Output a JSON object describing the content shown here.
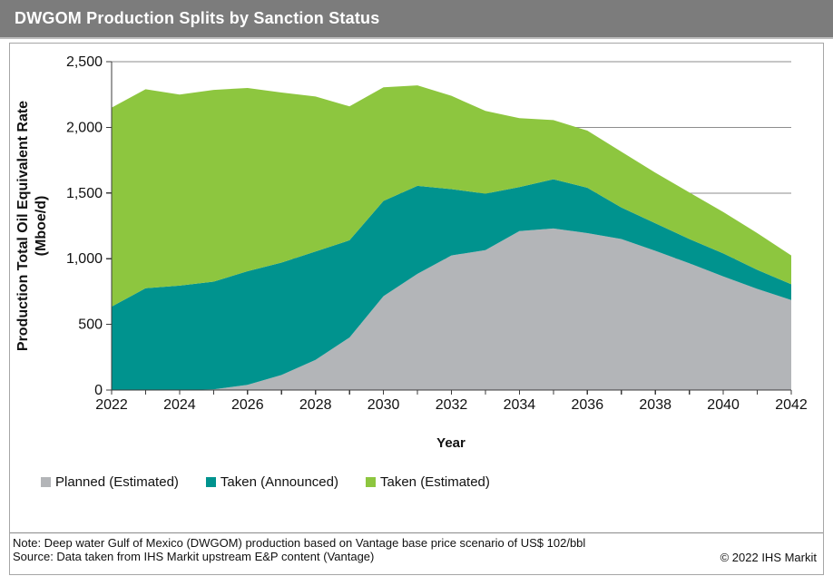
{
  "title_bar": {
    "title": "DWGOM Production Splits by Sanction Status"
  },
  "chart_data": {
    "type": "area",
    "stacked": true,
    "title": "DWGOM Production Splits by Sanction Status",
    "xlabel": "Year",
    "ylabel": "Production Total Oil Equivalent Rate (Mboe/d)",
    "ylabel_line1": "Production  Total Oil Equivalent Rate",
    "ylabel_line2": "(Mboe/d)",
    "ylim": [
      0,
      2500
    ],
    "ytick_step": 500,
    "xtick_label_step": 2,
    "grid": "horizontal",
    "legend_position": "bottom-left",
    "x": [
      2022,
      2023,
      2024,
      2025,
      2026,
      2027,
      2028,
      2029,
      2030,
      2031,
      2032,
      2033,
      2034,
      2035,
      2036,
      2037,
      2038,
      2039,
      2040,
      2041,
      2042
    ],
    "series": [
      {
        "name": "Planned (Estimated)",
        "color": "#b3b5b8",
        "values": [
          0,
          0,
          0,
          5,
          40,
          115,
          230,
          400,
          715,
          885,
          1025,
          1065,
          1210,
          1230,
          1195,
          1150,
          1060,
          965,
          865,
          770,
          685
        ]
      },
      {
        "name": "Taken (Announced)",
        "color": "#00938e",
        "values": [
          635,
          775,
          795,
          820,
          865,
          855,
          825,
          740,
          725,
          670,
          505,
          430,
          335,
          375,
          345,
          240,
          210,
          185,
          175,
          145,
          120
        ]
      },
      {
        "name": "Taken (Estimated)",
        "color": "#8dc63f",
        "values": [
          1515,
          1515,
          1455,
          1460,
          1395,
          1295,
          1180,
          1020,
          865,
          765,
          710,
          630,
          525,
          450,
          435,
          425,
          385,
          355,
          315,
          280,
          220
        ]
      }
    ]
  },
  "footer": {
    "note": "Note: Deep water Gulf of Mexico (DWGOM) production based on Vantage base price scenario of US$ 102/bbl",
    "source": "Source: Data taken from IHS Markit upstream E&P content (Vantage)",
    "copyright": "© 2022 IHS Markit"
  }
}
